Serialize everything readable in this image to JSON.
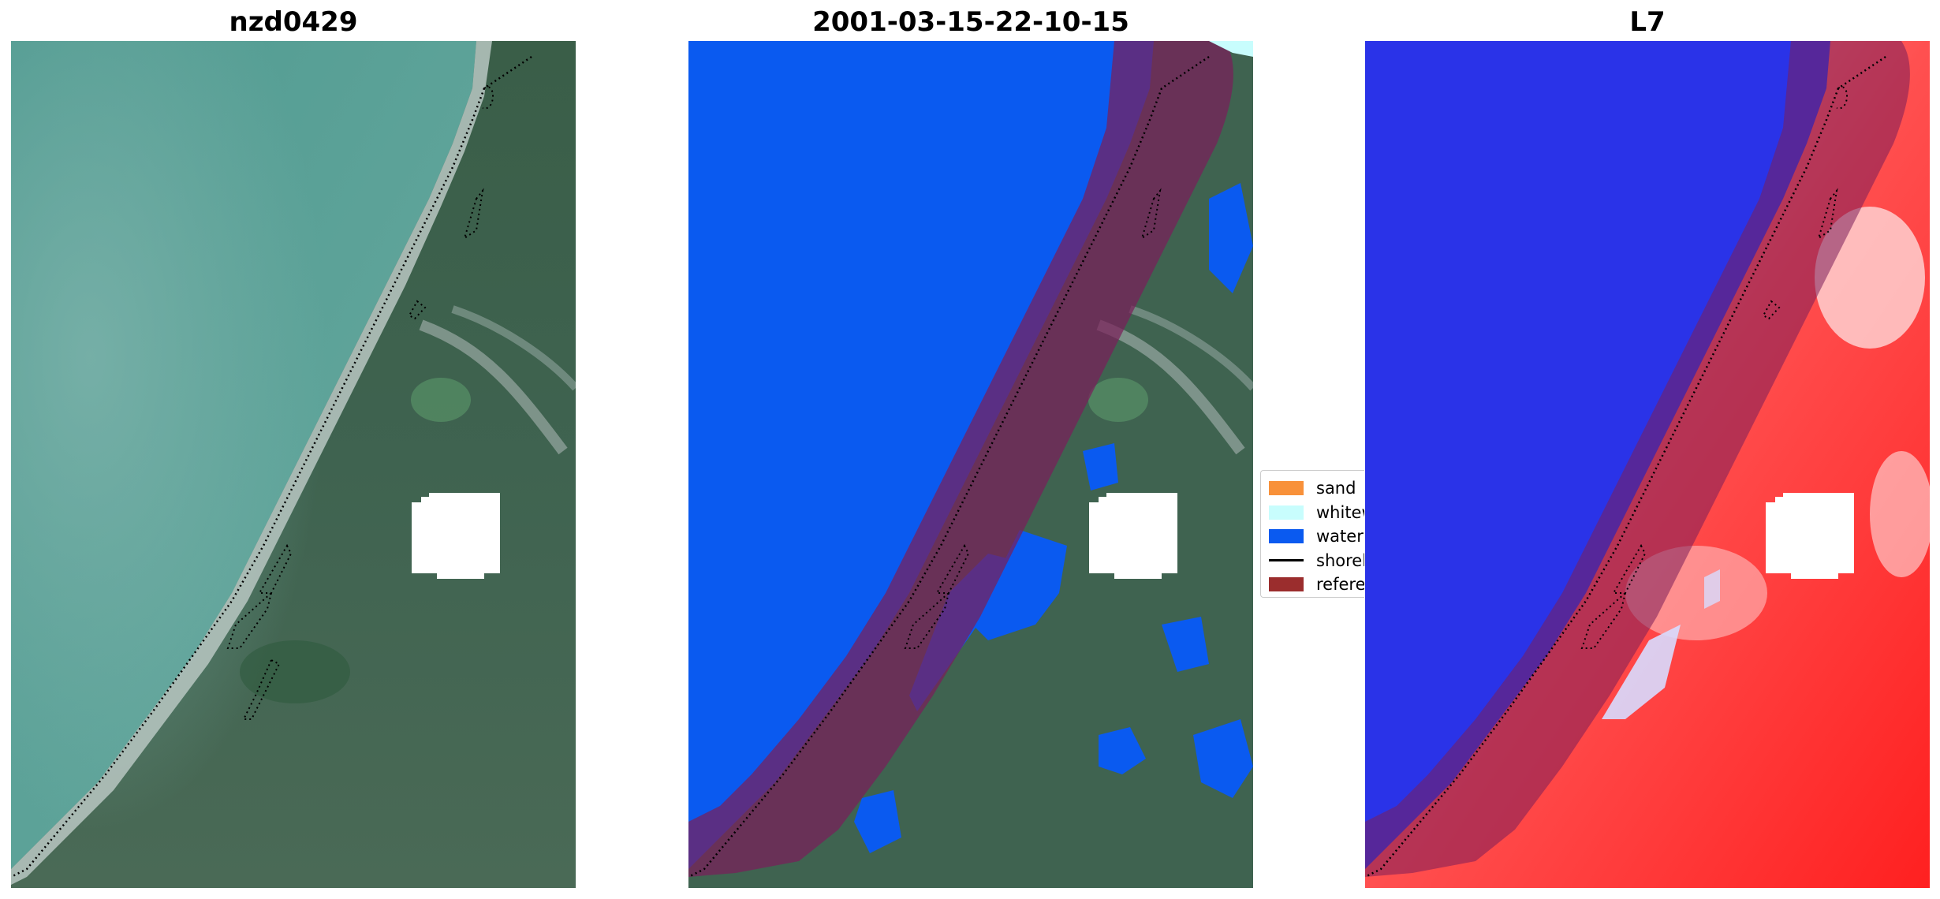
{
  "panels": [
    {
      "title": "nzd0429"
    },
    {
      "title": "2001-03-15-22-10-15"
    },
    {
      "title": "L7"
    }
  ],
  "legend": {
    "items": [
      {
        "label": "sand",
        "color": "#f8913a",
        "kind": "patch"
      },
      {
        "label": "whitewater",
        "color": "#c8fdfd",
        "kind": "patch"
      },
      {
        "label": "water",
        "color": "#0a5af0",
        "kind": "patch"
      },
      {
        "label": "shoreline",
        "color": "#000000",
        "kind": "line"
      },
      {
        "label": "reference",
        "color": "#9b2d2d",
        "kind": "patch"
      }
    ]
  },
  "colors": {
    "sea": "#5a9e94",
    "land": "#3d6048",
    "water_class": "#0a5af0",
    "buffer": "#7a1e5a",
    "index_water": "#2a33e8",
    "index_land": "#ff3030",
    "cloud_mask": "#ffffff"
  }
}
